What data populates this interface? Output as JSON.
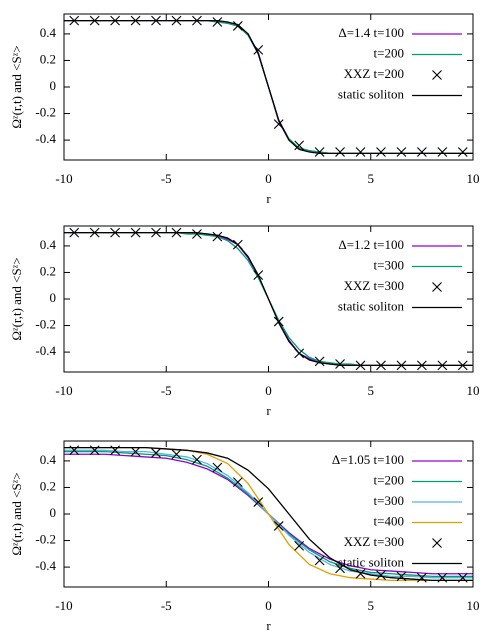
{
  "chart_data": [
    {
      "type": "line",
      "xlabel": "r",
      "ylabel": "Ωᶻ(r,t) and <Sᶻ>",
      "xlim": [
        -10,
        10
      ],
      "ylim": [
        -0.55,
        0.55
      ],
      "xticks": [
        -10,
        -5,
        0,
        5,
        10
      ],
      "yticks": [
        0.4,
        0.2,
        0,
        -0.2,
        -0.4
      ],
      "legend": "upper right",
      "x": [
        -10,
        -9,
        -8,
        -7,
        -6,
        -5,
        -4.5,
        -4,
        -3.5,
        -3,
        -2.5,
        -2,
        -1.5,
        -1,
        -0.5,
        0,
        0.5,
        1,
        1.5,
        2,
        2.5,
        3,
        3.5,
        4,
        4.5,
        5,
        6,
        7,
        8,
        9,
        10
      ],
      "series": [
        {
          "name": "Δ=1.4 t=100",
          "color": "#9400d3",
          "values": [
            0.5,
            0.5,
            0.5,
            0.5,
            0.5,
            0.5,
            0.5,
            0.5,
            0.5,
            0.5,
            0.49,
            0.48,
            0.46,
            0.4,
            0.26,
            0,
            -0.26,
            -0.4,
            -0.46,
            -0.48,
            -0.49,
            -0.5,
            -0.5,
            -0.5,
            -0.5,
            -0.5,
            -0.5,
            -0.5,
            -0.5,
            -0.5,
            -0.5
          ]
        },
        {
          "name": "t=200",
          "color": "#009e73",
          "values": [
            0.5,
            0.5,
            0.5,
            0.5,
            0.5,
            0.5,
            0.5,
            0.5,
            0.5,
            0.5,
            0.49,
            0.48,
            0.46,
            0.39,
            0.25,
            0,
            -0.25,
            -0.39,
            -0.46,
            -0.48,
            -0.49,
            -0.5,
            -0.5,
            -0.5,
            -0.5,
            -0.5,
            -0.5,
            -0.5,
            -0.5,
            -0.5,
            -0.5
          ]
        },
        {
          "name": "XXZ t=200",
          "color": "#000000",
          "mode": "markers",
          "x": [
            -9.5,
            -8.5,
            -7.5,
            -6.5,
            -5.5,
            -4.5,
            -3.5,
            -2.5,
            -1.5,
            -0.5,
            0.5,
            1.5,
            2.5,
            3.5,
            4.5,
            5.5,
            6.5,
            7.5,
            8.5,
            9.5
          ],
          "values": [
            0.5,
            0.5,
            0.5,
            0.5,
            0.5,
            0.5,
            0.5,
            0.49,
            0.46,
            0.28,
            -0.28,
            -0.44,
            -0.49,
            -0.49,
            -0.49,
            -0.49,
            -0.49,
            -0.49,
            -0.49,
            -0.49
          ]
        },
        {
          "name": "static soliton",
          "color": "#000000",
          "values": [
            0.5,
            0.5,
            0.5,
            0.5,
            0.5,
            0.5,
            0.5,
            0.5,
            0.5,
            0.5,
            0.5,
            0.49,
            0.47,
            0.4,
            0.25,
            0,
            -0.25,
            -0.4,
            -0.47,
            -0.49,
            -0.5,
            -0.5,
            -0.5,
            -0.5,
            -0.5,
            -0.5,
            -0.5,
            -0.5,
            -0.5,
            -0.5,
            -0.5
          ]
        }
      ]
    },
    {
      "type": "line",
      "xlabel": "r",
      "ylabel": "Ωᶻ(r,t) and <Sᶻ>",
      "xlim": [
        -10,
        10
      ],
      "ylim": [
        -0.55,
        0.55
      ],
      "xticks": [
        -10,
        -5,
        0,
        5,
        10
      ],
      "yticks": [
        0.4,
        0.2,
        0,
        -0.2,
        -0.4
      ],
      "legend": "upper right",
      "x": [
        -10,
        -9,
        -8,
        -7,
        -6,
        -5,
        -4.5,
        -4,
        -3.5,
        -3,
        -2.5,
        -2,
        -1.5,
        -1,
        -0.5,
        0,
        0.5,
        1,
        1.5,
        2,
        2.5,
        3,
        3.5,
        4,
        4.5,
        5,
        6,
        7,
        8,
        9,
        10
      ],
      "series": [
        {
          "name": "Δ=1.2 t=100",
          "color": "#9400d3",
          "values": [
            0.5,
            0.5,
            0.5,
            0.5,
            0.5,
            0.5,
            0.5,
            0.5,
            0.49,
            0.49,
            0.48,
            0.45,
            0.41,
            0.31,
            0.17,
            0,
            -0.17,
            -0.31,
            -0.41,
            -0.45,
            -0.48,
            -0.49,
            -0.49,
            -0.5,
            -0.5,
            -0.5,
            -0.5,
            -0.5,
            -0.5,
            -0.5,
            -0.5
          ]
        },
        {
          "name": "t=300",
          "color": "#009e73",
          "values": [
            0.5,
            0.5,
            0.5,
            0.5,
            0.5,
            0.5,
            0.5,
            0.49,
            0.49,
            0.48,
            0.47,
            0.44,
            0.38,
            0.29,
            0.16,
            0,
            -0.16,
            -0.29,
            -0.38,
            -0.44,
            -0.47,
            -0.48,
            -0.49,
            -0.49,
            -0.5,
            -0.5,
            -0.5,
            -0.5,
            -0.5,
            -0.5,
            -0.5
          ]
        },
        {
          "name": "XXZ t=300",
          "color": "#000000",
          "mode": "markers",
          "x": [
            -9.5,
            -8.5,
            -7.5,
            -6.5,
            -5.5,
            -4.5,
            -3.5,
            -2.5,
            -1.5,
            -0.5,
            0.5,
            1.5,
            2.5,
            3.5,
            4.5,
            5.5,
            6.5,
            7.5,
            8.5,
            9.5
          ],
          "values": [
            0.5,
            0.5,
            0.5,
            0.5,
            0.5,
            0.5,
            0.49,
            0.47,
            0.41,
            0.18,
            -0.17,
            -0.41,
            -0.47,
            -0.49,
            -0.5,
            -0.5,
            -0.5,
            -0.5,
            -0.5,
            -0.5
          ]
        },
        {
          "name": "static soliton",
          "color": "#000000",
          "values": [
            0.5,
            0.5,
            0.5,
            0.5,
            0.5,
            0.5,
            0.5,
            0.5,
            0.5,
            0.49,
            0.48,
            0.46,
            0.41,
            0.32,
            0.18,
            0,
            -0.18,
            -0.32,
            -0.41,
            -0.46,
            -0.48,
            -0.49,
            -0.5,
            -0.5,
            -0.5,
            -0.5,
            -0.5,
            -0.5,
            -0.5,
            -0.5,
            -0.5
          ]
        }
      ]
    },
    {
      "type": "line",
      "xlabel": "r",
      "ylabel": "Ωᶻ(r,t) and <Sᶻ>",
      "xlim": [
        -10,
        10
      ],
      "ylim": [
        -0.55,
        0.55
      ],
      "xticks": [
        -10,
        -5,
        0,
        5,
        10
      ],
      "yticks": [
        0.4,
        0.2,
        0,
        -0.2,
        -0.4
      ],
      "legend": "upper right",
      "x": [
        -10,
        -9,
        -8,
        -7,
        -6,
        -5,
        -4,
        -3,
        -2,
        -1,
        0,
        1,
        2,
        3,
        4,
        5,
        6,
        7,
        8,
        9,
        10
      ],
      "series": [
        {
          "name": "Δ=1.05 t=100",
          "color": "#9400d3",
          "values": [
            0.45,
            0.45,
            0.45,
            0.44,
            0.43,
            0.42,
            0.39,
            0.34,
            0.26,
            0.14,
            0,
            -0.14,
            -0.26,
            -0.34,
            -0.39,
            -0.42,
            -0.43,
            -0.44,
            -0.45,
            -0.45,
            -0.45
          ]
        },
        {
          "name": "t=200",
          "color": "#009e73",
          "values": [
            0.47,
            0.47,
            0.47,
            0.46,
            0.45,
            0.44,
            0.41,
            0.36,
            0.27,
            0.15,
            0,
            -0.15,
            -0.27,
            -0.36,
            -0.41,
            -0.44,
            -0.45,
            -0.46,
            -0.47,
            -0.47,
            -0.47
          ]
        },
        {
          "name": "t=300",
          "color": "#56b4e9",
          "values": [
            0.48,
            0.48,
            0.48,
            0.47,
            0.47,
            0.45,
            0.43,
            0.38,
            0.29,
            0.16,
            0,
            -0.16,
            -0.29,
            -0.38,
            -0.43,
            -0.45,
            -0.47,
            -0.47,
            -0.48,
            -0.48,
            -0.48
          ]
        },
        {
          "name": "t=400",
          "color": "#e69f00",
          "values": [
            0.5,
            0.5,
            0.5,
            0.5,
            0.5,
            0.49,
            0.48,
            0.45,
            0.38,
            0.23,
            0,
            -0.23,
            -0.38,
            -0.45,
            -0.48,
            -0.49,
            -0.5,
            -0.5,
            -0.5,
            -0.5,
            -0.5
          ]
        },
        {
          "name": "XXZ t=300",
          "color": "#000000",
          "mode": "markers",
          "x": [
            -9.5,
            -8.5,
            -7.5,
            -6.5,
            -5.5,
            -4.5,
            -3.5,
            -2.5,
            -1.5,
            -0.5,
            0.5,
            1.5,
            2.5,
            3.5,
            4.5,
            5.5,
            6.5,
            7.5,
            8.5,
            9.5
          ],
          "values": [
            0.48,
            0.48,
            0.48,
            0.47,
            0.46,
            0.45,
            0.41,
            0.35,
            0.24,
            0.09,
            -0.09,
            -0.24,
            -0.35,
            -0.41,
            -0.45,
            -0.46,
            -0.47,
            -0.48,
            -0.48,
            -0.48
          ]
        },
        {
          "name": "static soliton",
          "color": "#000000",
          "values": [
            0.5,
            0.5,
            0.5,
            0.5,
            0.5,
            0.49,
            0.48,
            0.46,
            0.42,
            0.33,
            0.19,
            0,
            -0.19,
            -0.33,
            -0.42,
            -0.46,
            -0.48,
            -0.49,
            -0.5,
            -0.5,
            -0.5
          ]
        }
      ]
    }
  ]
}
